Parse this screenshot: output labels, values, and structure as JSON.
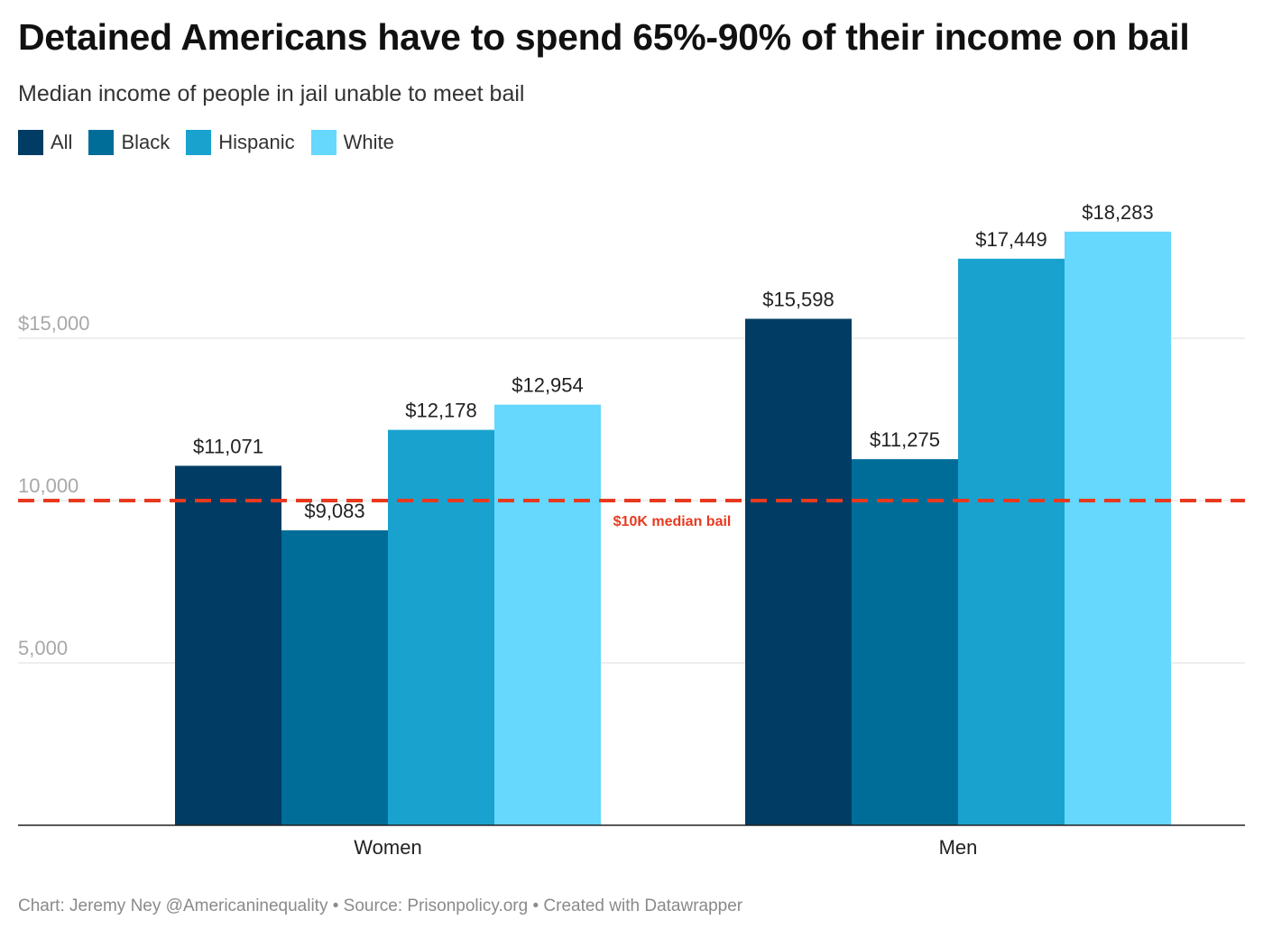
{
  "title": "Detained Americans have to spend 65%-90% of their income on bail",
  "subtitle": "Median income of people in jail unable to meet bail",
  "footer": "Chart: Jeremy Ney @Americaninequality • Source: Prisonpolicy.org • Created with Datawrapper",
  "chart_data": {
    "type": "bar",
    "categories": [
      "Women",
      "Men"
    ],
    "series": [
      {
        "name": "All",
        "color": "#003c63",
        "values": [
          11071,
          15598
        ],
        "labels": [
          "$11,071",
          "$15,598"
        ]
      },
      {
        "name": "Black",
        "color": "#006d98",
        "values": [
          9083,
          11275
        ],
        "labels": [
          "$9,083",
          "$11,275"
        ]
      },
      {
        "name": "Hispanic",
        "color": "#1aa2cf",
        "values": [
          12178,
          17449
        ],
        "labels": [
          "$12,178",
          "$17,449"
        ]
      },
      {
        "name": "White",
        "color": "#66d7fd",
        "values": [
          12954,
          18283
        ],
        "labels": [
          "$12,954",
          "$18,283"
        ]
      }
    ],
    "ylim": [
      0,
      20000
    ],
    "yticks": [
      {
        "value": 5000,
        "label": "5,000"
      },
      {
        "value": 10000,
        "label": "10,000"
      },
      {
        "value": 15000,
        "label": "$15,000"
      }
    ],
    "grid": true,
    "legend_position": "top-left",
    "reference_line": {
      "value": 10000,
      "label": "$10K median bail",
      "color": "#e8391f"
    }
  }
}
